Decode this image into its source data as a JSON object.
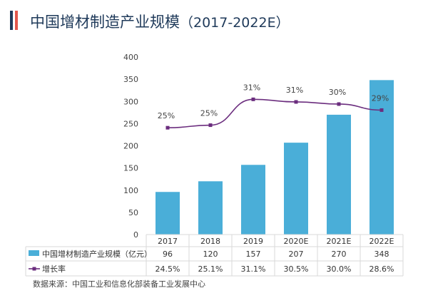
{
  "header": {
    "title": "中国增材制造产业规模",
    "subtitle": "（2017-2022E）",
    "accent_color": "#e2574c",
    "brand_color": "#1f3a5a"
  },
  "chart_data": {
    "type": "bar",
    "categories": [
      "2017",
      "2018",
      "2019",
      "2020E",
      "2021E",
      "2022E"
    ],
    "series": [
      {
        "name": "中国增材制造产业规模（亿元）",
        "type": "bar",
        "values": [
          96,
          120,
          157,
          207,
          270,
          348
        ],
        "table_values": [
          "96",
          "120",
          "157",
          "207",
          "270",
          "348"
        ],
        "color": "#4aaed8"
      },
      {
        "name": "增长率",
        "type": "line",
        "values": [
          24.5,
          25.1,
          31.1,
          30.5,
          30.0,
          28.6
        ],
        "labels": [
          "25%",
          "25%",
          "31%",
          "31%",
          "30%",
          "29%"
        ],
        "table_values": [
          "24.5%",
          "25.1%",
          "31.1%",
          "30.5%",
          "30.0%",
          "28.6%"
        ],
        "color": "#6b2d7e"
      }
    ],
    "yticks": [
      "0",
      "50",
      "100",
      "150",
      "200",
      "250",
      "300",
      "350",
      "400"
    ],
    "ylim": [
      0,
      400
    ],
    "grid": false,
    "legend": "data-table-below"
  },
  "source": "数据来源：中国工业和信息化部装备工业发展中心"
}
